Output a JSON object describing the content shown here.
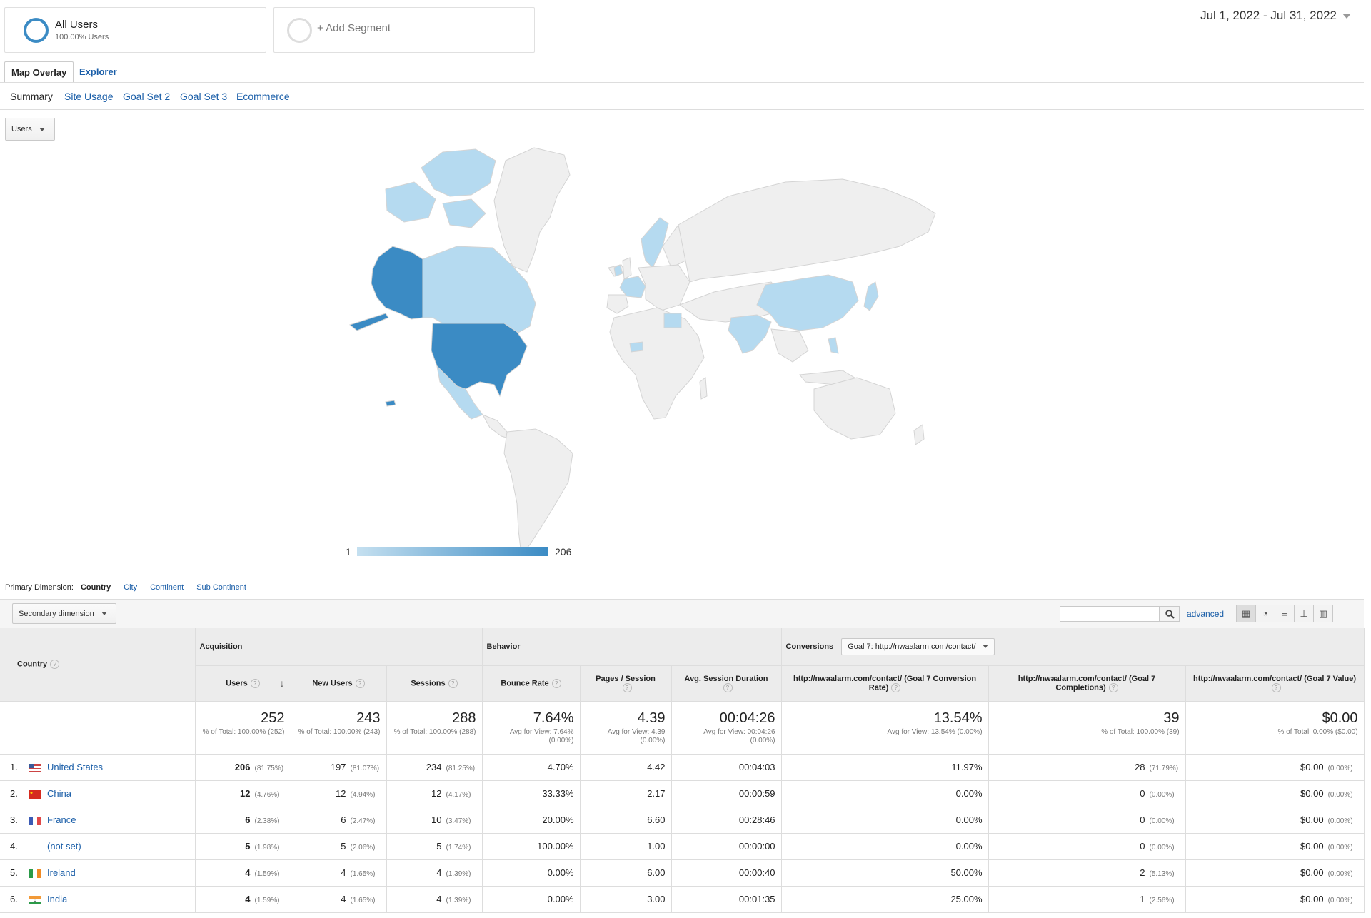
{
  "segments": {
    "all_users": {
      "title": "All Users",
      "subtitle": "100.00% Users"
    },
    "add_label": "+ Add Segment"
  },
  "date_range": "Jul 1, 2022 - Jul 31, 2022",
  "tabs": [
    "Map Overlay",
    "Explorer"
  ],
  "subtabs": [
    "Summary",
    "Site Usage",
    "Goal Set 2",
    "Goal Set 3",
    "Ecommerce"
  ],
  "metric_select": "Users",
  "map": {
    "legend_min": "1",
    "legend_max": "206",
    "colors": {
      "high": "#3b8bc4",
      "low": "#b5daf0",
      "none": "#efefef"
    }
  },
  "dimensions": {
    "label": "Primary Dimension:",
    "active": "Country",
    "options": [
      "City",
      "Continent",
      "Sub Continent"
    ]
  },
  "secondary_dimension": "Secondary dimension",
  "search": {
    "placeholder": "",
    "advanced": "advanced"
  },
  "table": {
    "groups": {
      "acquisition": "Acquisition",
      "behavior": "Behavior",
      "conversions": "Conversions",
      "goal_select": "Goal 7: http://nwaalarm.com/contact/"
    },
    "country_header": "Country",
    "columns": [
      "Users",
      "New Users",
      "Sessions",
      "Bounce Rate",
      "Pages / Session",
      "Avg. Session Duration",
      "http://nwaalarm.com/contact/ (Goal 7 Conversion Rate)",
      "http://nwaalarm.com/contact/ (Goal 7 Completions)",
      "http://nwaalarm.com/contact/ (Goal 7 Value)"
    ],
    "totals": [
      {
        "big": "252",
        "small": "% of Total: 100.00% (252)"
      },
      {
        "big": "243",
        "small": "% of Total: 100.00% (243)"
      },
      {
        "big": "288",
        "small": "% of Total: 100.00% (288)"
      },
      {
        "big": "7.64%",
        "small": "Avg for View: 7.64% (0.00%)"
      },
      {
        "big": "4.39",
        "small": "Avg for View: 4.39 (0.00%)"
      },
      {
        "big": "00:04:26",
        "small": "Avg for View: 00:04:26 (0.00%)"
      },
      {
        "big": "13.54%",
        "small": "Avg for View: 13.54% (0.00%)"
      },
      {
        "big": "39",
        "small": "% of Total: 100.00% (39)"
      },
      {
        "big": "$0.00",
        "small": "% of Total: 0.00% ($0.00)"
      }
    ],
    "rows": [
      {
        "idx": "1.",
        "country": "United States",
        "flag": "us",
        "link": true,
        "users": "206",
        "users_pct": "(81.75%)",
        "new_users": "197",
        "new_users_pct": "(81.07%)",
        "sessions": "234",
        "sessions_pct": "(81.25%)",
        "bounce": "4.70%",
        "pps": "4.42",
        "dur": "00:04:03",
        "conv": "11.97%",
        "comp": "28",
        "comp_pct": "(71.79%)",
        "value": "$0.00",
        "value_pct": "(0.00%)"
      },
      {
        "idx": "2.",
        "country": "China",
        "flag": "cn",
        "link": true,
        "users": "12",
        "users_pct": "(4.76%)",
        "new_users": "12",
        "new_users_pct": "(4.94%)",
        "sessions": "12",
        "sessions_pct": "(4.17%)",
        "bounce": "33.33%",
        "pps": "2.17",
        "dur": "00:00:59",
        "conv": "0.00%",
        "comp": "0",
        "comp_pct": "(0.00%)",
        "value": "$0.00",
        "value_pct": "(0.00%)"
      },
      {
        "idx": "3.",
        "country": "France",
        "flag": "fr",
        "link": true,
        "users": "6",
        "users_pct": "(2.38%)",
        "new_users": "6",
        "new_users_pct": "(2.47%)",
        "sessions": "10",
        "sessions_pct": "(3.47%)",
        "bounce": "20.00%",
        "pps": "6.60",
        "dur": "00:28:46",
        "conv": "0.00%",
        "comp": "0",
        "comp_pct": "(0.00%)",
        "value": "$0.00",
        "value_pct": "(0.00%)"
      },
      {
        "idx": "4.",
        "country": "(not set)",
        "flag": "",
        "link": true,
        "users": "5",
        "users_pct": "(1.98%)",
        "new_users": "5",
        "new_users_pct": "(2.06%)",
        "sessions": "5",
        "sessions_pct": "(1.74%)",
        "bounce": "100.00%",
        "pps": "1.00",
        "dur": "00:00:00",
        "conv": "0.00%",
        "comp": "0",
        "comp_pct": "(0.00%)",
        "value": "$0.00",
        "value_pct": "(0.00%)"
      },
      {
        "idx": "5.",
        "country": "Ireland",
        "flag": "ie",
        "link": true,
        "users": "4",
        "users_pct": "(1.59%)",
        "new_users": "4",
        "new_users_pct": "(1.65%)",
        "sessions": "4",
        "sessions_pct": "(1.39%)",
        "bounce": "0.00%",
        "pps": "6.00",
        "dur": "00:00:40",
        "conv": "50.00%",
        "comp": "2",
        "comp_pct": "(5.13%)",
        "value": "$0.00",
        "value_pct": "(0.00%)"
      },
      {
        "idx": "6.",
        "country": "India",
        "flag": "in",
        "link": true,
        "users": "4",
        "users_pct": "(1.59%)",
        "new_users": "4",
        "new_users_pct": "(1.65%)",
        "sessions": "4",
        "sessions_pct": "(1.39%)",
        "bounce": "0.00%",
        "pps": "3.00",
        "dur": "00:01:35",
        "conv": "25.00%",
        "comp": "1",
        "comp_pct": "(2.56%)",
        "value": "$0.00",
        "value_pct": "(0.00%)"
      }
    ]
  }
}
